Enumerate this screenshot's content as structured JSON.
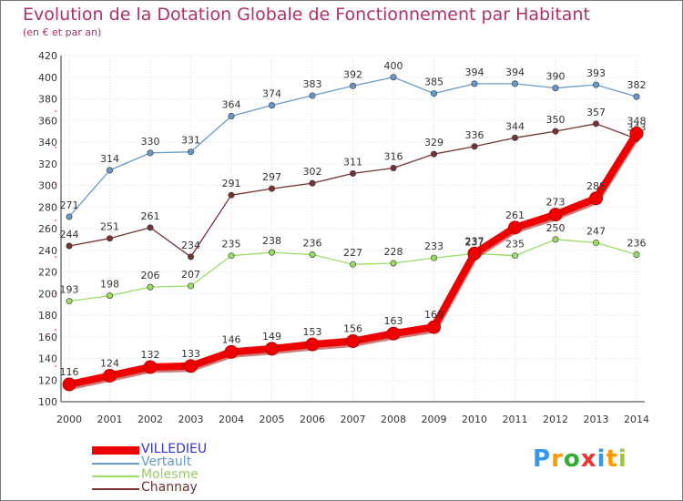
{
  "chart_data": {
    "type": "line",
    "title": "Evolution de la Dotation Globale de Fonctionnement par Habitant",
    "subtitle": "(en € et par an)",
    "xlabel": "",
    "ylabel": "",
    "x": [
      "2000",
      "2001",
      "2002",
      "2003",
      "2004",
      "2005",
      "2006",
      "2007",
      "2008",
      "2009",
      "2010",
      "2011",
      "2012",
      "2013",
      "2014"
    ],
    "ylim": [
      100,
      420
    ],
    "yticks": [
      100,
      120,
      140,
      160,
      180,
      200,
      220,
      240,
      260,
      280,
      300,
      320,
      340,
      360,
      380,
      400,
      420
    ],
    "grid": true,
    "legend_position": "bottom-left",
    "series": [
      {
        "name": "VILLEDIEU",
        "color": "#ee0000",
        "legend_color": "#3333cc",
        "emphasis": true,
        "values": [
          116,
          124,
          132,
          133,
          146,
          149,
          153,
          156,
          163,
          169,
          237,
          261,
          273,
          288,
          348
        ]
      },
      {
        "name": "Vertault",
        "color": "#6699cc",
        "legend_color": "#6699cc",
        "emphasis": false,
        "values": [
          271,
          314,
          330,
          331,
          364,
          374,
          383,
          392,
          400,
          385,
          394,
          394,
          390,
          393,
          382
        ]
      },
      {
        "name": "Molesme",
        "color": "#99dd66",
        "legend_color": "#99cc66",
        "emphasis": false,
        "values": [
          193,
          198,
          206,
          207,
          235,
          238,
          236,
          227,
          228,
          233,
          237,
          235,
          250,
          247,
          236
        ]
      },
      {
        "name": "Channay",
        "color": "#773333",
        "legend_color": "#663333",
        "emphasis": false,
        "values": [
          244,
          251,
          261,
          234,
          291,
          297,
          302,
          311,
          316,
          329,
          336,
          344,
          350,
          357,
          343
        ]
      }
    ]
  },
  "logo": {
    "text": "Proxiti",
    "letters": [
      "P",
      "r",
      "o",
      "x",
      "i",
      "t",
      "i"
    ],
    "colors": [
      "#3399ee",
      "#ff9900",
      "#33aa33",
      "#ee3333",
      "#3399ee",
      "#ff9900",
      "#99cc33"
    ]
  }
}
